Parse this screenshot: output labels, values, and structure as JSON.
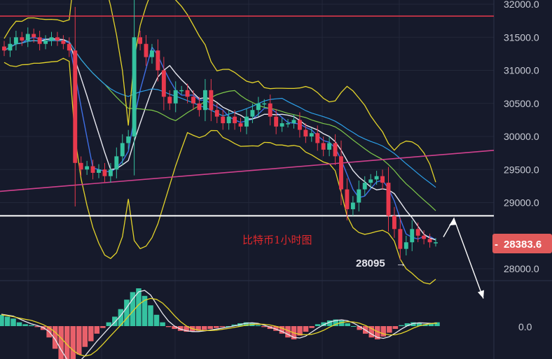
{
  "chart_data": [
    {
      "type": "candlestick",
      "title": "",
      "annotation": "比特币1小时图",
      "y_axis_ticks": [
        "32000.0",
        "31500.0",
        "31000.0",
        "30500.0",
        "30000.0",
        "29500.0",
        "29000.0",
        "28000.0"
      ],
      "ylim": [
        27800,
        32050
      ],
      "current_price_label": "28383.6",
      "low_label": "28095",
      "low_value": 28095,
      "resistance_line": 31820,
      "support_line": 28800,
      "trendline_start": 29170,
      "trendline_end": 29790,
      "close": [
        31300,
        31400,
        31500,
        31450,
        31550,
        31500,
        31400,
        31450,
        31500,
        31450,
        31400,
        31300,
        29600,
        29500,
        29550,
        29450,
        29500,
        29400,
        29500,
        29700,
        29900,
        30000,
        31500,
        31400,
        31200,
        31300,
        31000,
        30600,
        30500,
        30700,
        30700,
        30600,
        30500,
        30400,
        30700,
        30400,
        30300,
        30200,
        30300,
        30200,
        30150,
        30300,
        30400,
        30500,
        30500,
        30300,
        30150,
        30200,
        30200,
        30250,
        30100,
        30000,
        30050,
        29900,
        29800,
        29900,
        29700,
        29200,
        28900,
        29000,
        29200,
        29300,
        29350,
        29400,
        29300,
        28800,
        28600,
        28300,
        28400,
        28600,
        28500,
        28450,
        28400,
        28400
      ],
      "colors": {
        "up": "#35c2a0",
        "down": "#e8394d",
        "ma_white": "#e8e8f0",
        "ma_blue": "#3f6fe6",
        "ma_green": "#7ec84a",
        "ma_dgreen": "#4ba644",
        "ma_cyan": "#2c9fe8",
        "bollinger": "#e3d32a",
        "trendline": "#d0418e"
      }
    },
    {
      "type": "bar",
      "title": "",
      "zero_label": "0.0",
      "histogram": [
        60,
        50,
        40,
        20,
        10,
        5,
        -5,
        -20,
        -60,
        -120,
        -180,
        -200,
        -190,
        -150,
        -110,
        -80,
        -40,
        -10,
        20,
        50,
        90,
        140,
        180,
        200,
        160,
        110,
        60,
        20,
        -5,
        -15,
        -25,
        -30,
        -28,
        -25,
        -20,
        -15,
        -10,
        -5,
        0,
        8,
        15,
        20,
        15,
        5,
        -5,
        -15,
        -25,
        -40,
        -60,
        -70,
        -50,
        -30,
        -10,
        10,
        20,
        30,
        35,
        30,
        15,
        0,
        -20,
        -40,
        -60,
        -70,
        -55,
        -35,
        -15,
        5,
        15,
        20,
        15,
        10,
        15,
        20
      ]
    }
  ]
}
